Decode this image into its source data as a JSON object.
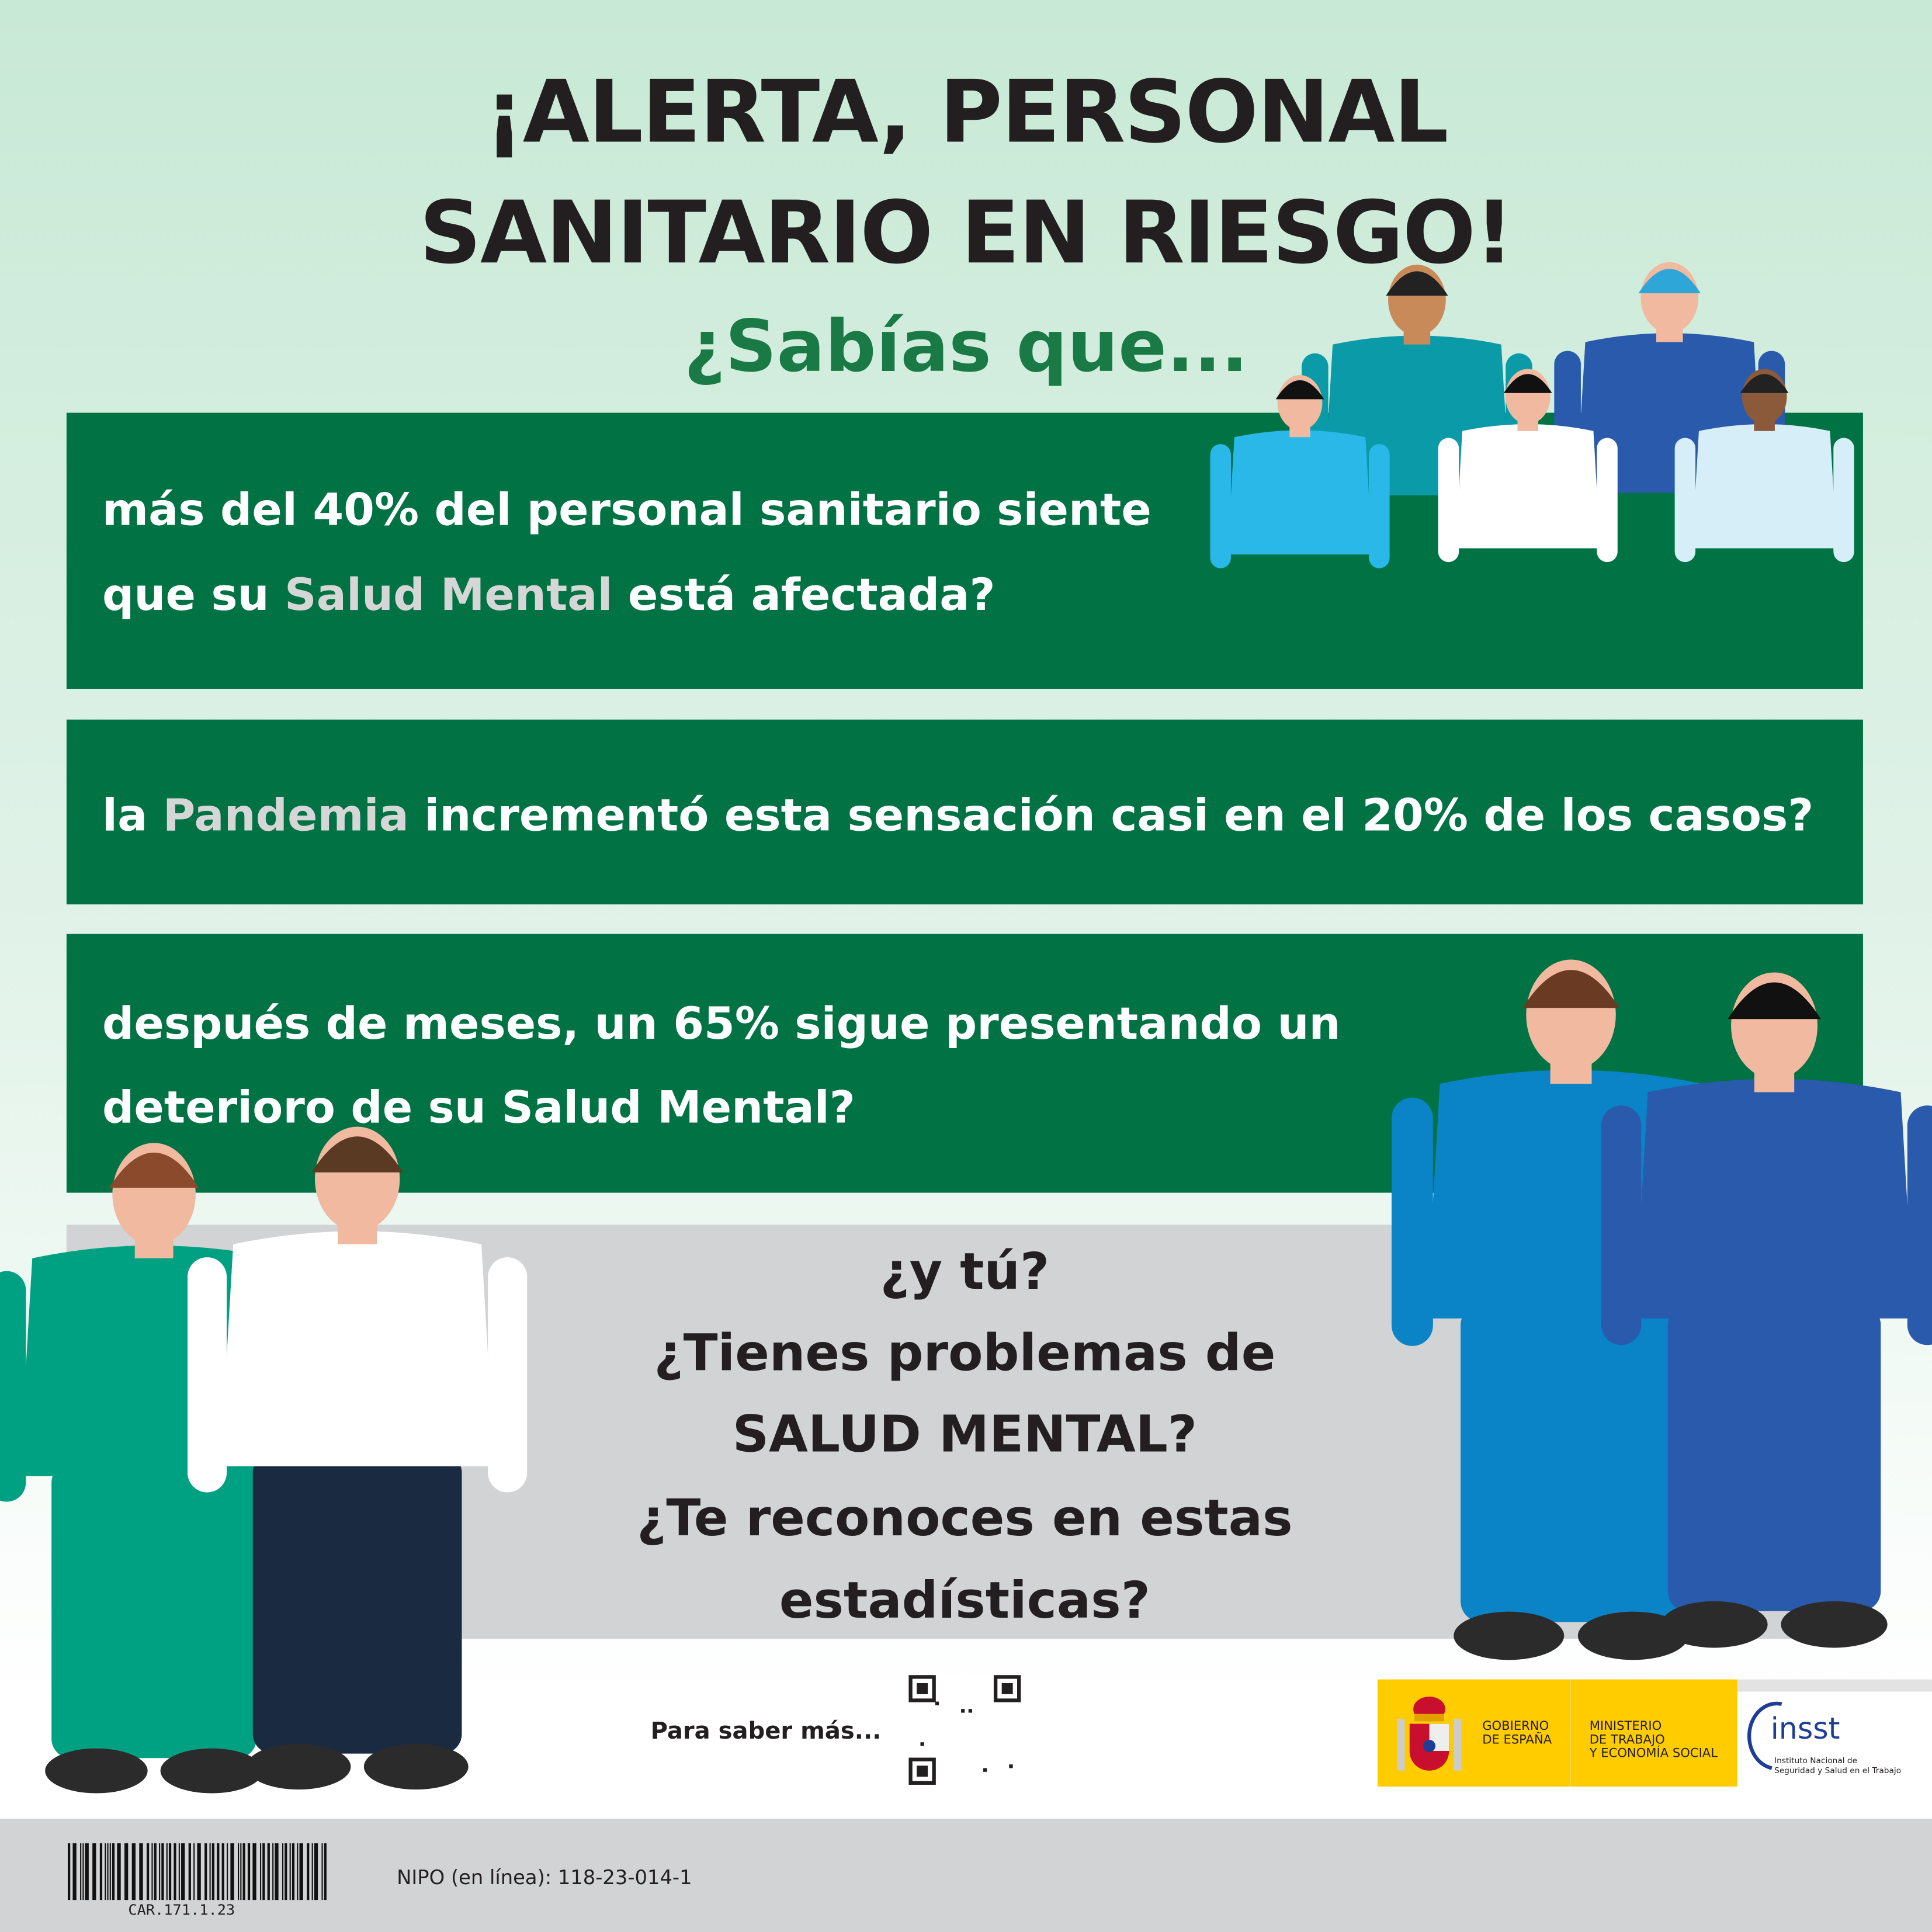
{
  "header": {
    "title_line1": "¡ALERTA, PERSONAL",
    "title_line2": "SANITARIO EN RIESGO!",
    "subtitle": "¿Sabías que..."
  },
  "facts": [
    {
      "line1": "más del 40% del personal sanitario siente",
      "line2_pre": "que su ",
      "line2_highlight": "Salud Mental",
      "line2_post": " está afectada?"
    },
    {
      "pre": "la ",
      "highlight": "Pandemia",
      "post": " incrementó esta sensación casi en el 20% de los casos?"
    },
    {
      "line1": "después de meses, un 65% sigue presentando un",
      "line2": "deterioro de su Salud Mental?"
    }
  ],
  "question": {
    "lines": [
      "¿y tú?",
      "¿Tienes problemas de",
      "SALUD MENTAL?",
      "¿Te reconoces en estas",
      "estadísticas?"
    ]
  },
  "more_info": {
    "label": "Para saber más...",
    "qr_icon": "qr-code-icon"
  },
  "logos": {
    "gobierno": [
      "GOBIERNO",
      "DE ESPAÑA"
    ],
    "ministerio": [
      "MINISTERIO",
      "DE TRABAJO",
      "Y ECONOMÍA SOCIAL"
    ],
    "insst": "insst",
    "insst_sub": [
      "Instituto Nacional de",
      "Seguridad y Salud en el Trabajo"
    ]
  },
  "footer": {
    "barcode_text": "CAR.171.1.23",
    "nipo": "NIPO (en línea): 118-23-014-1"
  },
  "colors": {
    "green_box": "#007244",
    "subtitle_green": "#1a7a45",
    "gray_box": "#d1d3d4",
    "gov_yellow": "#ffcc00",
    "insst_blue": "#1e3e96"
  }
}
